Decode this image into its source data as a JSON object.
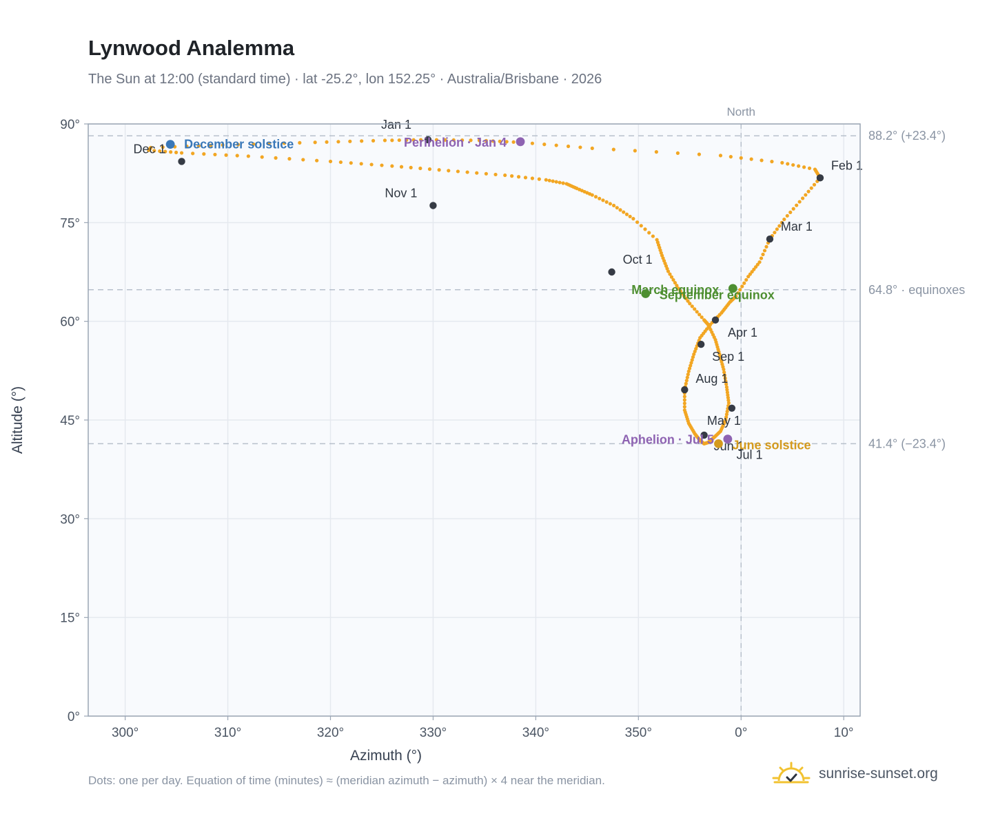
{
  "title": "Lynwood Analemma",
  "subtitle": "The Sun at 12:00 (standard time) · lat -25.2°, lon 152.25° · Australia/Brisbane · 2026",
  "footnote": "Dots: one per day. Equation of time (minutes) ≈ (meridian azimuth − azimuth) × 4 near the meridian.",
  "brand": {
    "name": "sunrise-sunset.org",
    "icon": "sun-logo-icon"
  },
  "colors": {
    "analemma": "#f2a623",
    "month_marker": "#363b45",
    "equinox": "#4e8f31",
    "december_solstice": "#3a78b8",
    "june_solstice": "#d49a1c",
    "apsis": "#8e63b2",
    "reference": "#b7c0cc",
    "grid": "#e5e9ef",
    "plot_bg": "#f8fafd"
  },
  "chart_data": {
    "type": "scatter",
    "xlabel": "Azimuth (°)",
    "ylabel": "Altitude (°)",
    "xlim": [
      296.4,
      11.6
    ],
    "ylim": [
      0,
      90
    ],
    "x_ticks": [
      "300°",
      "310°",
      "320°",
      "330°",
      "340°",
      "350°",
      "0°",
      "10°"
    ],
    "x_tick_values": [
      300,
      310,
      320,
      330,
      340,
      350,
      360,
      370
    ],
    "y_ticks": [
      "0°",
      "15°",
      "30°",
      "45°",
      "60°",
      "75°",
      "90°"
    ],
    "y_tick_values": [
      0,
      15,
      30,
      45,
      60,
      75,
      90
    ],
    "grid": true,
    "meridian": {
      "label": "North",
      "azimuth": 0
    },
    "reference_lines": [
      {
        "altitude": 88.2,
        "label": "88.2° (+23.4°)"
      },
      {
        "altitude": 64.8,
        "label": "64.8° · equinoxes"
      },
      {
        "altitude": 41.4,
        "label": "41.4° (−23.4°)"
      }
    ],
    "series": [
      {
        "points": [
          [
            329.5,
            87.6
          ],
          [
            325.3,
            87.5
          ],
          [
            318.5,
            87.2
          ],
          [
            309.5,
            86.8
          ],
          [
            302.5,
            86.4
          ],
          [
            302.3,
            86.0
          ],
          [
            305.5,
            85.6
          ],
          [
            312.0,
            85.1
          ],
          [
            320.0,
            84.3
          ],
          [
            326.0,
            83.6
          ],
          [
            331.5,
            82.9
          ],
          [
            337.0,
            82.2
          ],
          [
            341.0,
            81.5
          ],
          [
            343.0,
            80.9
          ],
          [
            344.0,
            80.2
          ],
          [
            345.5,
            79.2
          ],
          [
            347.6,
            77.6
          ],
          [
            349.5,
            75.6
          ],
          [
            351.8,
            72.4
          ],
          [
            352.3,
            70.0
          ],
          [
            352.9,
            67.6
          ],
          [
            353.9,
            65.0
          ],
          [
            355.0,
            62.7
          ],
          [
            356.4,
            60.2
          ],
          [
            356.8,
            59.5
          ],
          [
            357.5,
            57.2
          ],
          [
            357.9,
            55.0
          ],
          [
            358.3,
            52.7
          ],
          [
            358.6,
            50.0
          ],
          [
            358.8,
            47.6
          ],
          [
            358.5,
            45.0
          ],
          [
            358.0,
            43.3
          ],
          [
            357.4,
            42.4
          ],
          [
            356.8,
            41.6
          ],
          [
            356.4,
            41.4
          ],
          [
            356.0,
            41.9
          ],
          [
            355.5,
            42.9
          ],
          [
            354.9,
            44.5
          ],
          [
            354.5,
            46.5
          ],
          [
            354.5,
            49.6
          ],
          [
            354.9,
            52.4
          ],
          [
            355.4,
            55.0
          ],
          [
            356.0,
            57.5
          ],
          [
            357.0,
            59.5
          ],
          [
            358.1,
            61.3
          ],
          [
            358.9,
            62.9
          ],
          [
            359.5,
            63.8
          ],
          [
            360.7,
            66.8
          ],
          [
            361.8,
            69.0
          ],
          [
            362.8,
            72.5
          ],
          [
            364.2,
            75.5
          ],
          [
            366.0,
            78.7
          ],
          [
            367.7,
            81.8
          ],
          [
            367.2,
            83.1
          ],
          [
            364.0,
            84.1
          ],
          [
            358.0,
            85.2
          ],
          [
            345.5,
            86.3
          ],
          [
            338.5,
            87.2
          ],
          [
            334.5,
            87.5
          ],
          [
            329.5,
            87.6
          ]
        ]
      }
    ],
    "month_markers": [
      {
        "label": "Jan 1",
        "az": 329.5,
        "alt": 87.6
      },
      {
        "label": "Feb 1",
        "az": 7.7,
        "alt": 81.8
      },
      {
        "label": "Mar 1",
        "az": 2.8,
        "alt": 72.5
      },
      {
        "label": "Apr 1",
        "az": 357.5,
        "alt": 60.2
      },
      {
        "label": "May 1",
        "az": 359.1,
        "alt": 46.8
      },
      {
        "label": "Jun 1",
        "az": 356.4,
        "alt": 42.7
      },
      {
        "label": "Jul 1",
        "az": 357.8,
        "alt": 41.4
      },
      {
        "label": "Aug 1",
        "az": 354.5,
        "alt": 49.6
      },
      {
        "label": "Sep 1",
        "az": 356.1,
        "alt": 56.5
      },
      {
        "label": "Oct 1",
        "az": 347.4,
        "alt": 67.5
      },
      {
        "label": "Nov 1",
        "az": 330.0,
        "alt": 77.6
      },
      {
        "label": "Dec 1",
        "az": 305.5,
        "alt": 84.3
      }
    ],
    "events": [
      {
        "label": "December solstice",
        "az": 304.4,
        "alt": 86.9,
        "color_key": "december_solstice"
      },
      {
        "label": "Perihelion · Jan 4",
        "az": 338.5,
        "alt": 87.3,
        "color_key": "apsis"
      },
      {
        "label": "March equinox",
        "az": 359.2,
        "alt": 65.0,
        "color_key": "equinox"
      },
      {
        "label": "September equinox",
        "az": 350.7,
        "alt": 64.2,
        "color_key": "equinox"
      },
      {
        "label": "June solstice",
        "az": 357.8,
        "alt": 41.4,
        "color_key": "june_solstice"
      },
      {
        "label": "Aphelion · Jul 5",
        "az": 358.7,
        "alt": 42.1,
        "color_key": "apsis"
      }
    ]
  }
}
